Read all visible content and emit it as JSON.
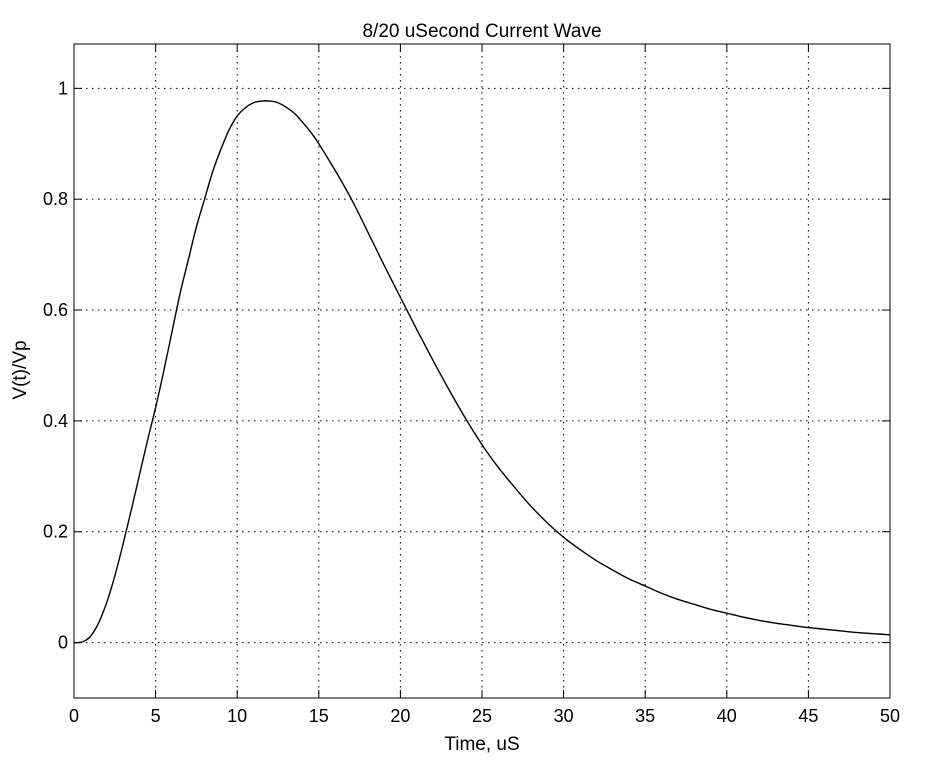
{
  "chart_data": {
    "type": "line",
    "title": "8/20 uSecond Current Wave",
    "xlabel": "Time, uS",
    "ylabel": "V(t)/Vp",
    "xlim": [
      0,
      50
    ],
    "ylim": [
      -0.1,
      1.08
    ],
    "xticks": [
      0,
      5,
      10,
      15,
      20,
      25,
      30,
      35,
      40,
      45,
      50
    ],
    "yticks": [
      0,
      0.2,
      0.4,
      0.6,
      0.8,
      1
    ],
    "xtick_labels": [
      "0",
      "5",
      "10",
      "15",
      "20",
      "25",
      "30",
      "35",
      "40",
      "45",
      "50"
    ],
    "ytick_labels": [
      "0",
      "0.2",
      "0.4",
      "0.6",
      "0.8",
      "1"
    ],
    "grid": true,
    "line_color": "#000000",
    "series": [
      {
        "x": [
          0,
          0.5,
          1,
          1.5,
          2,
          2.5,
          3,
          3.5,
          4,
          4.5,
          5,
          5.5,
          6,
          6.5,
          7,
          7.5,
          8,
          8.5,
          9,
          9.5,
          10,
          10.5,
          11,
          11.5,
          12,
          12.5,
          13,
          13.5,
          14,
          14.5,
          15,
          16,
          17,
          18,
          19,
          20,
          21,
          22,
          23,
          24,
          25,
          26,
          27,
          28,
          29,
          30,
          31,
          32,
          33,
          34,
          35,
          36,
          37,
          38,
          39,
          40,
          41,
          42,
          43,
          44,
          45,
          46,
          47,
          48,
          49,
          50
        ],
        "y": [
          0,
          0.001,
          0.011,
          0.035,
          0.072,
          0.12,
          0.177,
          0.238,
          0.301,
          0.364,
          0.424,
          0.49,
          0.56,
          0.63,
          0.69,
          0.75,
          0.8,
          0.85,
          0.89,
          0.925,
          0.95,
          0.965,
          0.974,
          0.977,
          0.977,
          0.974,
          0.966,
          0.955,
          0.939,
          0.921,
          0.9,
          0.852,
          0.8,
          0.741,
          0.681,
          0.623,
          0.565,
          0.509,
          0.455,
          0.404,
          0.357,
          0.316,
          0.28,
          0.246,
          0.216,
          0.19,
          0.168,
          0.148,
          0.131,
          0.115,
          0.102,
          0.089,
          0.078,
          0.069,
          0.06,
          0.053,
          0.046,
          0.04,
          0.035,
          0.031,
          0.027,
          0.024,
          0.021,
          0.018,
          0.016,
          0.014
        ]
      }
    ]
  }
}
